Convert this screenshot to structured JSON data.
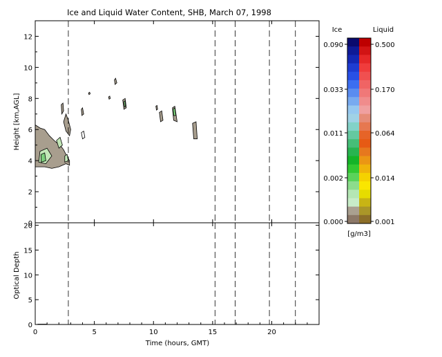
{
  "chart_data": [
    {
      "type": "heatmap",
      "title": "Ice and Liquid Water Content, SHB, March 07, 1998",
      "xlabel": "",
      "ylabel": "Height [km,AGL]",
      "xlim": [
        0,
        24
      ],
      "ylim": [
        0,
        13
      ],
      "x_ticks": [
        0,
        5,
        10,
        15,
        20
      ],
      "x_tick_labels": [
        "",
        "",
        "",
        "",
        ""
      ],
      "y_ticks": [
        0,
        2,
        4,
        6,
        8,
        10,
        12
      ],
      "y_tick_labels": [
        "0",
        "2",
        "4",
        "6",
        "8",
        "10",
        "12"
      ],
      "dashed_time_markers": [
        2.8,
        15.2,
        16.9,
        19.8,
        22.0
      ],
      "cloud_regions": [
        {
          "fill": "#a89e8e",
          "points": [
            [
              0,
              6.3
            ],
            [
              0.4,
              6.1
            ],
            [
              0.8,
              6.0
            ],
            [
              1.2,
              5.6
            ],
            [
              1.6,
              5.3
            ],
            [
              1.9,
              5.1
            ],
            [
              2.2,
              4.9
            ],
            [
              2.4,
              4.7
            ],
            [
              2.6,
              4.4
            ],
            [
              2.9,
              4.0
            ],
            [
              2.9,
              3.7
            ],
            [
              2.6,
              3.8
            ],
            [
              2.0,
              3.6
            ],
            [
              1.4,
              3.5
            ],
            [
              0.8,
              3.6
            ],
            [
              0.3,
              3.6
            ],
            [
              0,
              3.6
            ]
          ]
        },
        {
          "fill": "#a89e8e",
          "points": [
            [
              2.4,
              6.5
            ],
            [
              2.6,
              7.0
            ],
            [
              2.8,
              6.6
            ],
            [
              3.0,
              6.0
            ],
            [
              2.9,
              5.6
            ],
            [
              2.6,
              5.9
            ]
          ]
        },
        {
          "fill": "#a89e8e",
          "points": [
            [
              2.2,
              7.6
            ],
            [
              2.35,
              7.7
            ],
            [
              2.4,
              7.2
            ],
            [
              2.25,
              7.0
            ]
          ]
        },
        {
          "fill": "#ffffff",
          "points": [
            [
              3.9,
              5.8
            ],
            [
              4.1,
              5.9
            ],
            [
              4.2,
              5.5
            ],
            [
              4.0,
              5.4
            ]
          ]
        },
        {
          "fill": "#a89e8e",
          "points": [
            [
              3.9,
              7.3
            ],
            [
              4.0,
              7.4
            ],
            [
              4.1,
              7.0
            ],
            [
              3.95,
              6.9
            ]
          ]
        },
        {
          "fill": "#a89e8e",
          "points": [
            [
              4.5,
              8.35
            ],
            [
              4.6,
              8.4
            ],
            [
              4.65,
              8.3
            ],
            [
              4.55,
              8.25
            ]
          ]
        },
        {
          "fill": "#a89e8e",
          "points": [
            [
              6.2,
              8.1
            ],
            [
              6.3,
              8.15
            ],
            [
              6.35,
              8.0
            ],
            [
              6.25,
              7.95
            ]
          ]
        },
        {
          "fill": "#a89e8e",
          "points": [
            [
              6.7,
              9.2
            ],
            [
              6.8,
              9.3
            ],
            [
              6.9,
              9.0
            ],
            [
              6.75,
              8.9
            ]
          ]
        },
        {
          "fill": "#a89e8e",
          "points": [
            [
              7.4,
              7.9
            ],
            [
              7.6,
              8.0
            ],
            [
              7.7,
              7.4
            ],
            [
              7.5,
              7.3
            ]
          ]
        },
        {
          "fill": "#a89e8e",
          "points": [
            [
              10.2,
              7.5
            ],
            [
              10.3,
              7.55
            ],
            [
              10.35,
              7.3
            ],
            [
              10.25,
              7.25
            ]
          ]
        },
        {
          "fill": "#a89e8e",
          "points": [
            [
              10.5,
              7.1
            ],
            [
              10.7,
              7.2
            ],
            [
              10.8,
              6.6
            ],
            [
              10.6,
              6.5
            ]
          ]
        },
        {
          "fill": "#a89e8e",
          "points": [
            [
              11.6,
              7.4
            ],
            [
              11.8,
              7.5
            ],
            [
              12.0,
              6.5
            ],
            [
              11.7,
              6.6
            ]
          ]
        },
        {
          "fill": "#a89e8e",
          "points": [
            [
              13.3,
              6.4
            ],
            [
              13.6,
              6.5
            ],
            [
              13.7,
              5.4
            ],
            [
              13.4,
              5.4
            ]
          ]
        },
        {
          "fill": "#7ccf7c",
          "points": [
            [
              11.65,
              7.3
            ],
            [
              11.8,
              7.4
            ],
            [
              11.9,
              6.9
            ],
            [
              11.7,
              6.9
            ]
          ]
        },
        {
          "fill": "#c3e8b8",
          "points": [
            [
              0.4,
              4.6
            ],
            [
              1.0,
              4.8
            ],
            [
              1.4,
              4.3
            ],
            [
              0.9,
              3.8
            ],
            [
              0.3,
              3.9
            ]
          ]
        },
        {
          "fill": "#7ccf7c",
          "points": [
            [
              0.5,
              4.4
            ],
            [
              0.8,
              4.5
            ],
            [
              0.9,
              4.0
            ],
            [
              0.5,
              3.9
            ]
          ]
        },
        {
          "fill": "#c3e8b8",
          "points": [
            [
              1.8,
              5.3
            ],
            [
              2.1,
              5.5
            ],
            [
              2.3,
              5.0
            ],
            [
              2.0,
              4.8
            ]
          ]
        },
        {
          "fill": "#c3e8b8",
          "points": [
            [
              2.5,
              4.3
            ],
            [
              2.7,
              4.4
            ],
            [
              2.8,
              4.0
            ],
            [
              2.5,
              3.9
            ]
          ]
        },
        {
          "fill": "#7ccf7c",
          "points": [
            [
              7.5,
              7.8
            ],
            [
              7.6,
              7.85
            ],
            [
              7.65,
              7.5
            ],
            [
              7.55,
              7.45
            ]
          ]
        }
      ]
    },
    {
      "type": "line",
      "title": "",
      "xlabel": "Time (hours, GMT)",
      "ylabel": "Optical Depth",
      "xlim": [
        0,
        24
      ],
      "ylim": [
        0,
        20.5
      ],
      "x_ticks": [
        0,
        5,
        10,
        15,
        20
      ],
      "x_tick_labels": [
        "0",
        "5",
        "10",
        "15",
        "20"
      ],
      "y_ticks": [
        0,
        5,
        10,
        15,
        20
      ],
      "y_tick_labels": [
        "0",
        "5",
        "10",
        "15",
        "20"
      ],
      "dashed_time_markers": [
        2.8,
        15.2,
        16.9,
        19.8,
        22.0
      ],
      "series": [
        {
          "values": [
            [
              0.2,
              0.05
            ],
            [
              0.6,
              0.05
            ],
            [
              1.0,
              0.05
            ]
          ]
        }
      ]
    }
  ],
  "colorbar": {
    "ice_label": "Ice",
    "liquid_label": "Liquid",
    "units_label": "[g/m3]",
    "ice_ticks": [
      "0.090",
      "0.033",
      "0.011",
      "0.002",
      "0.000"
    ],
    "liquid_ticks": [
      "0.500",
      "0.170",
      "0.064",
      "0.014",
      "0.001"
    ],
    "ice_colors": [
      "#0a0a6e",
      "#0f1a96",
      "#1428b4",
      "#1e3cd2",
      "#2850e6",
      "#3c6ef0",
      "#5a8cf0",
      "#78aaf0",
      "#96c8f0",
      "#a0d2e6",
      "#82d2c8",
      "#64c8a0",
      "#46be78",
      "#28b450",
      "#14b428",
      "#32c832",
      "#5ad25a",
      "#8cdc8c",
      "#b4e6b4",
      "#c8ecc8",
      "#aaa090",
      "#8c7868"
    ],
    "liquid_colors": [
      "#be0000",
      "#d21414",
      "#e62828",
      "#f03c3c",
      "#f05050",
      "#f06464",
      "#f07878",
      "#f08c8c",
      "#f0a0a0",
      "#e68c78",
      "#e67850",
      "#e66428",
      "#e65a14",
      "#e6781e",
      "#eb9614",
      "#f0b40a",
      "#f5d200",
      "#fae600",
      "#e6dc00",
      "#c8b414",
      "#aa9628",
      "#8c6e28"
    ]
  }
}
